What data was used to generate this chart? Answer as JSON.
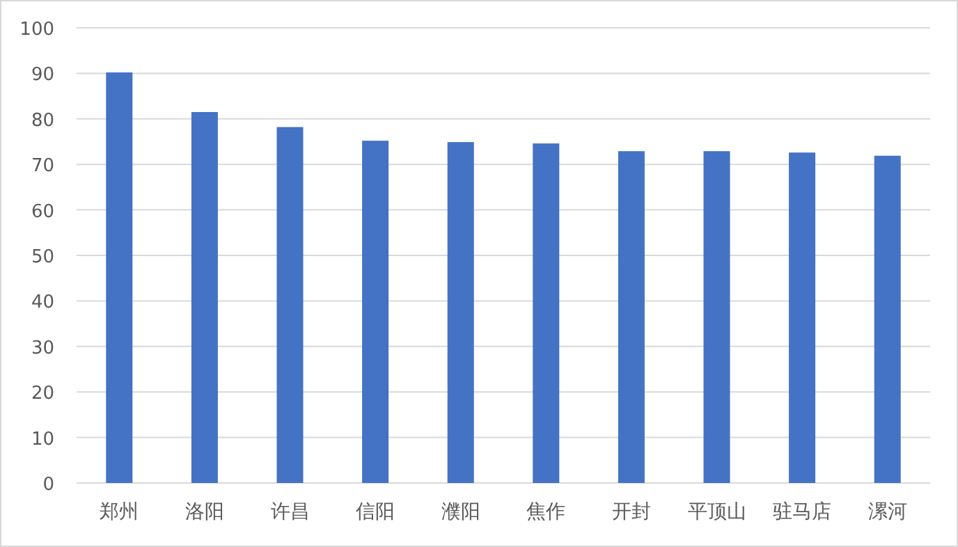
{
  "chart_data": {
    "type": "bar",
    "categories": [
      "郑州",
      "洛阳",
      "许昌",
      "信阳",
      "濮阳",
      "焦作",
      "开封",
      "平顶山",
      "驻马店",
      "漯河"
    ],
    "values": [
      90.2,
      81.5,
      78.2,
      75.2,
      74.9,
      74.6,
      72.9,
      72.9,
      72.6,
      71.9
    ],
    "color": "#4472c4",
    "ylim": [
      0,
      100
    ],
    "yticks": [
      0,
      10,
      20,
      30,
      40,
      50,
      60,
      70,
      80,
      90,
      100
    ],
    "grid": "y"
  }
}
